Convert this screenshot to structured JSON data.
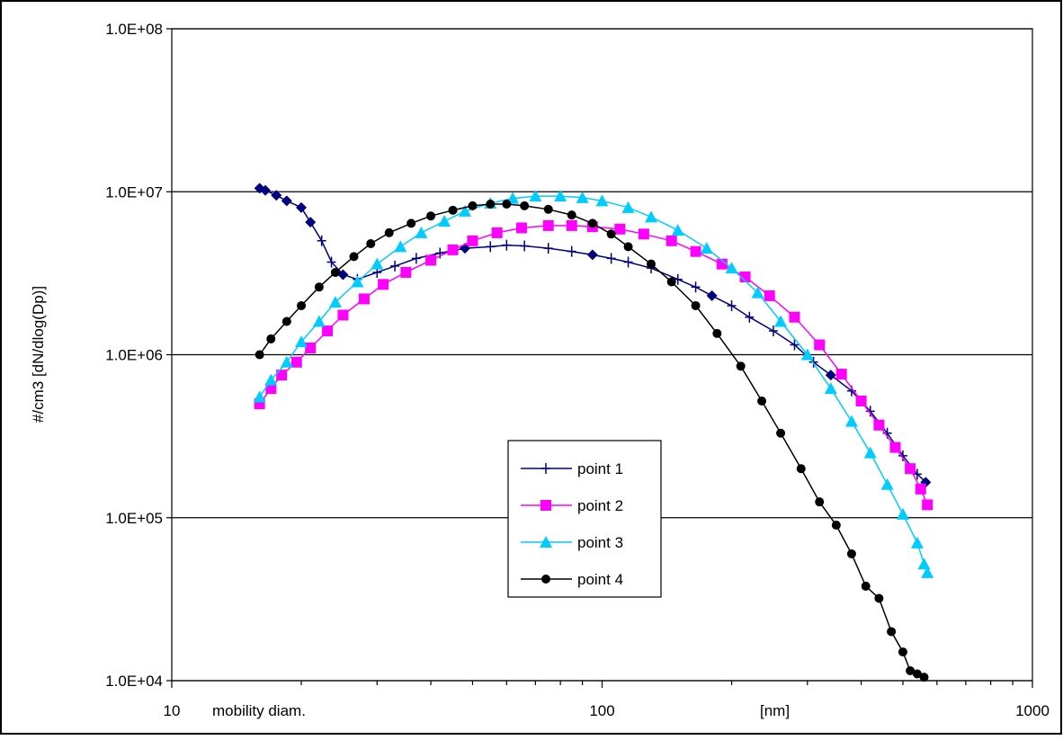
{
  "chart_data": {
    "type": "line",
    "x_scale": "log",
    "y_scale": "log",
    "xlim": [
      10,
      1000
    ],
    "ylim": [
      10000,
      100000000
    ],
    "x_ticks": [
      "10",
      "100",
      "1000"
    ],
    "y_ticks": [
      "1.0E+04",
      "1.0E+05",
      "1.0E+06",
      "1.0E+07",
      "1.0E+08"
    ],
    "ylabel": "#/cm3 [dN/dlog(Dp)]",
    "xlabel_left": "mobility diam.",
    "xlabel_right": "[nm]",
    "grid": "horizontal major",
    "legend_position": "lower-center",
    "series": [
      {
        "name": "point 1",
        "color": "#00007F",
        "marker": "plus",
        "points": [
          [
            16,
            10500000
          ],
          [
            16.5,
            10200000
          ],
          [
            17.5,
            9500000
          ],
          [
            18.5,
            8800000
          ],
          [
            20,
            8000000
          ],
          [
            21,
            6500000
          ],
          [
            22.3,
            5000000
          ],
          [
            23.5,
            3700000
          ],
          [
            25,
            3100000
          ],
          [
            27,
            2900000
          ],
          [
            30,
            3200000
          ],
          [
            33,
            3500000
          ],
          [
            37,
            3900000
          ],
          [
            42,
            4200000
          ],
          [
            48,
            4500000
          ],
          [
            55,
            4600000
          ],
          [
            60,
            4700000
          ],
          [
            66,
            4650000
          ],
          [
            75,
            4500000
          ],
          [
            85,
            4300000
          ],
          [
            95,
            4100000
          ],
          [
            105,
            3900000
          ],
          [
            115,
            3700000
          ],
          [
            130,
            3400000
          ],
          [
            150,
            2900000
          ],
          [
            165,
            2600000
          ],
          [
            180,
            2300000
          ],
          [
            200,
            2000000
          ],
          [
            220,
            1700000
          ],
          [
            250,
            1400000
          ],
          [
            280,
            1150000
          ],
          [
            310,
            900000
          ],
          [
            340,
            750000
          ],
          [
            380,
            600000
          ],
          [
            420,
            450000
          ],
          [
            460,
            330000
          ],
          [
            500,
            240000
          ],
          [
            540,
            185000
          ],
          [
            565,
            165000
          ]
        ]
      },
      {
        "name": "point 2",
        "color": "#FF00FF",
        "marker": "square",
        "points": [
          [
            16,
            500000
          ],
          [
            17,
            620000
          ],
          [
            18,
            750000
          ],
          [
            19.5,
            900000
          ],
          [
            21,
            1100000
          ],
          [
            23,
            1400000
          ],
          [
            25,
            1750000
          ],
          [
            28,
            2200000
          ],
          [
            31,
            2700000
          ],
          [
            35,
            3200000
          ],
          [
            40,
            3800000
          ],
          [
            45,
            4400000
          ],
          [
            50,
            5000000
          ],
          [
            57,
            5600000
          ],
          [
            65,
            6000000
          ],
          [
            75,
            6200000
          ],
          [
            85,
            6200000
          ],
          [
            95,
            6100000
          ],
          [
            110,
            5900000
          ],
          [
            125,
            5500000
          ],
          [
            145,
            5000000
          ],
          [
            165,
            4300000
          ],
          [
            190,
            3600000
          ],
          [
            215,
            3000000
          ],
          [
            245,
            2300000
          ],
          [
            280,
            1700000
          ],
          [
            320,
            1150000
          ],
          [
            360,
            760000
          ],
          [
            400,
            520000
          ],
          [
            440,
            370000
          ],
          [
            480,
            270000
          ],
          [
            520,
            200000
          ],
          [
            550,
            150000
          ],
          [
            570,
            120000
          ]
        ]
      },
      {
        "name": "point 3",
        "color": "#00CCFF",
        "marker": "triangle",
        "points": [
          [
            16,
            550000
          ],
          [
            17,
            700000
          ],
          [
            18.5,
            900000
          ],
          [
            20,
            1200000
          ],
          [
            22,
            1600000
          ],
          [
            24,
            2100000
          ],
          [
            27,
            2800000
          ],
          [
            30,
            3600000
          ],
          [
            34,
            4600000
          ],
          [
            38,
            5600000
          ],
          [
            43,
            6600000
          ],
          [
            48,
            7600000
          ],
          [
            55,
            8500000
          ],
          [
            62,
            9100000
          ],
          [
            70,
            9400000
          ],
          [
            80,
            9400000
          ],
          [
            90,
            9200000
          ],
          [
            100,
            8800000
          ],
          [
            115,
            8000000
          ],
          [
            130,
            7000000
          ],
          [
            150,
            5800000
          ],
          [
            175,
            4500000
          ],
          [
            200,
            3400000
          ],
          [
            230,
            2400000
          ],
          [
            260,
            1600000
          ],
          [
            300,
            1000000
          ],
          [
            340,
            620000
          ],
          [
            380,
            390000
          ],
          [
            420,
            250000
          ],
          [
            460,
            160000
          ],
          [
            500,
            105000
          ],
          [
            540,
            70000
          ],
          [
            560,
            52000
          ],
          [
            570,
            46000
          ]
        ]
      },
      {
        "name": "point 4",
        "color": "#000000",
        "marker": "circle",
        "points": [
          [
            16,
            1000000
          ],
          [
            17,
            1250000
          ],
          [
            18.5,
            1600000
          ],
          [
            20,
            2000000
          ],
          [
            22,
            2600000
          ],
          [
            24,
            3200000
          ],
          [
            26.5,
            4000000
          ],
          [
            29,
            4800000
          ],
          [
            32,
            5600000
          ],
          [
            36,
            6400000
          ],
          [
            40,
            7100000
          ],
          [
            45,
            7700000
          ],
          [
            50,
            8200000
          ],
          [
            55,
            8400000
          ],
          [
            60,
            8400000
          ],
          [
            66,
            8200000
          ],
          [
            75,
            7800000
          ],
          [
            85,
            7200000
          ],
          [
            95,
            6400000
          ],
          [
            105,
            5500000
          ],
          [
            115,
            4600000
          ],
          [
            130,
            3600000
          ],
          [
            145,
            2800000
          ],
          [
            165,
            2000000
          ],
          [
            185,
            1350000
          ],
          [
            210,
            850000
          ],
          [
            235,
            520000
          ],
          [
            260,
            330000
          ],
          [
            290,
            200000
          ],
          [
            320,
            125000
          ],
          [
            350,
            90000
          ],
          [
            380,
            60000
          ],
          [
            410,
            38000
          ],
          [
            440,
            32000
          ],
          [
            470,
            20000
          ],
          [
            500,
            15000
          ],
          [
            520,
            11500
          ],
          [
            540,
            11000
          ],
          [
            560,
            10500
          ]
        ]
      }
    ]
  }
}
